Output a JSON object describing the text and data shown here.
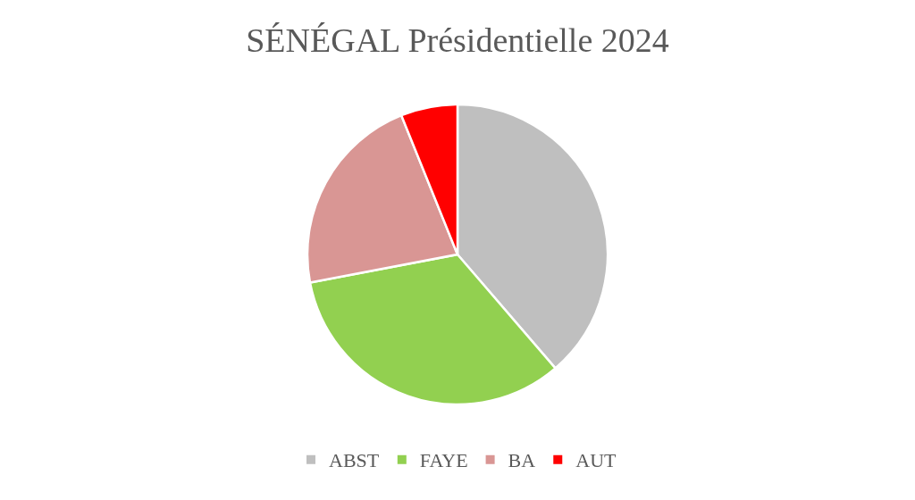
{
  "chart_data": {
    "type": "pie",
    "title": "SÉNÉGAL Présidentielle 2024",
    "categories": [
      "ABST",
      "FAYE",
      "BA",
      "AUT"
    ],
    "values": [
      38.7,
      33.3,
      21.9,
      6.1
    ],
    "colors": [
      "#bfbfbf",
      "#92d050",
      "#d99694",
      "#ff0000"
    ],
    "legend": "bottom"
  }
}
